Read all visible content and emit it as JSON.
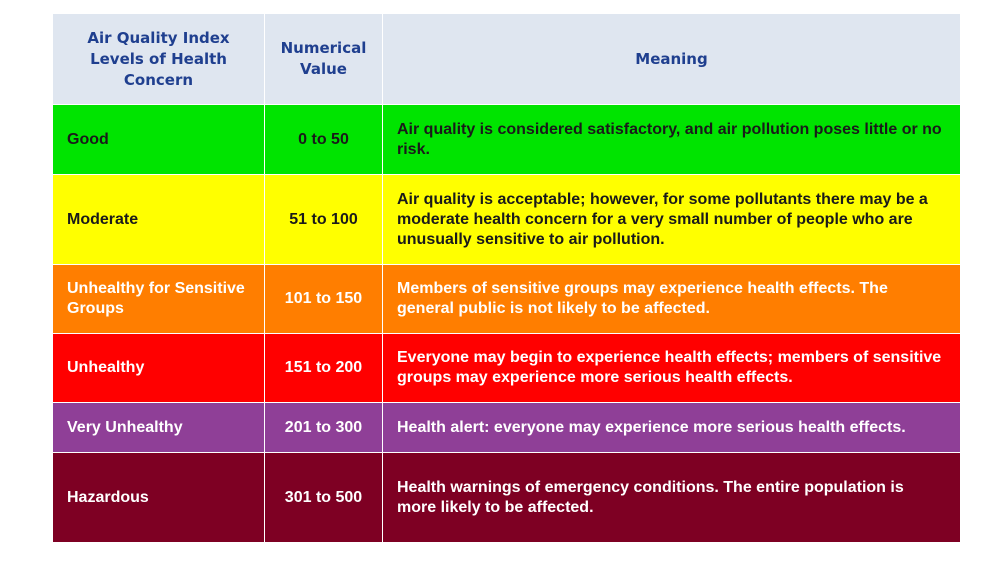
{
  "headers": {
    "level": "Air Quality Index Levels of Health Concern",
    "value": "Numerical Value",
    "meaning": "Meaning"
  },
  "rows": [
    {
      "level": "Good",
      "value": "0 to 50",
      "meaning": "Air quality is considered satisfactory, and air pollution poses little or no risk.",
      "bg": "#00e400",
      "fg": "#1a1a1a"
    },
    {
      "level": "Moderate",
      "value": "51 to 100",
      "meaning": "Air quality is acceptable; however, for some pollutants there may be a moderate health concern for a very small number of people who are unusually sensitive to air pollution.",
      "bg": "#ffff00",
      "fg": "#1a1a1a"
    },
    {
      "level": "Unhealthy for Sensitive Groups",
      "value": "101 to 150",
      "meaning": "Members of sensitive groups may experience health effects. The general public is not likely to be affected.",
      "bg": "#ff7e00",
      "fg": "#ffffff"
    },
    {
      "level": "Unhealthy",
      "value": "151 to 200",
      "meaning": "Everyone may begin to experience health effects; members of sensitive groups may experience more serious health effects.",
      "bg": "#ff0000",
      "fg": "#ffffff"
    },
    {
      "level": "Very Unhealthy",
      "value": "201 to 300",
      "meaning": "Health alert: everyone may experience more serious health effects.",
      "bg": "#8f3f97",
      "fg": "#ffffff"
    },
    {
      "level": "Hazardous",
      "value": "301 to 500",
      "meaning": "Health warnings of emergency conditions. The entire population is more likely to be affected.",
      "bg": "#7e0023",
      "fg": "#ffffff"
    }
  ]
}
